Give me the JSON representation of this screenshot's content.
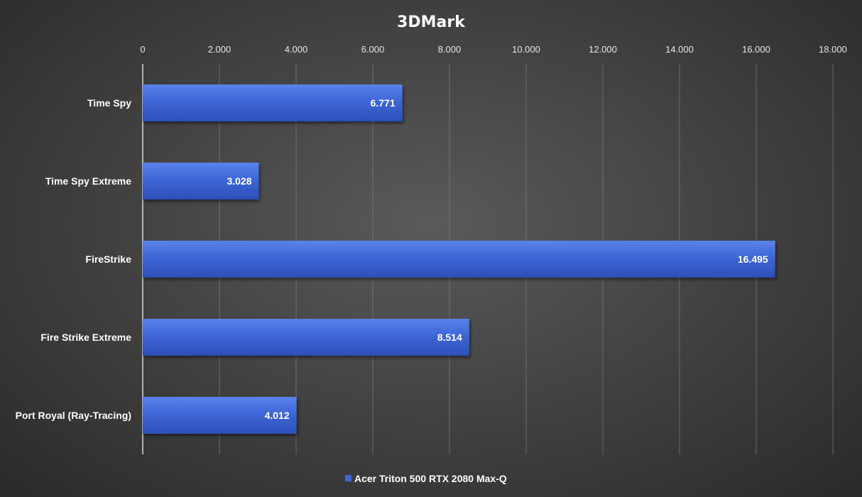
{
  "chart_data": {
    "type": "bar",
    "orientation": "horizontal",
    "title": "3DMark",
    "xlabel": "",
    "ylabel": "",
    "xlim": [
      0,
      18000
    ],
    "x_ticks": [
      0,
      2000,
      4000,
      6000,
      8000,
      10000,
      12000,
      14000,
      16000,
      18000
    ],
    "x_tick_labels": [
      "0",
      "2.000",
      "4.000",
      "6.000",
      "8.000",
      "10.000",
      "12.000",
      "14.000",
      "16.000",
      "18.000"
    ],
    "x_axis_position": "top",
    "grid": true,
    "legend_position": "bottom-center",
    "categories": [
      "Time Spy",
      "Time Spy Extreme",
      "FireStrike",
      "Fire Strike Extreme",
      "Port Royal (Ray-Tracing)"
    ],
    "series": [
      {
        "name": "Acer Triton 500 RTX 2080 Max-Q",
        "values": [
          6771,
          3028,
          16495,
          8514,
          4012
        ],
        "value_labels": [
          "6.771",
          "3.028",
          "16.495",
          "8.514",
          "4.012"
        ],
        "color": "#3f66d6"
      }
    ]
  }
}
